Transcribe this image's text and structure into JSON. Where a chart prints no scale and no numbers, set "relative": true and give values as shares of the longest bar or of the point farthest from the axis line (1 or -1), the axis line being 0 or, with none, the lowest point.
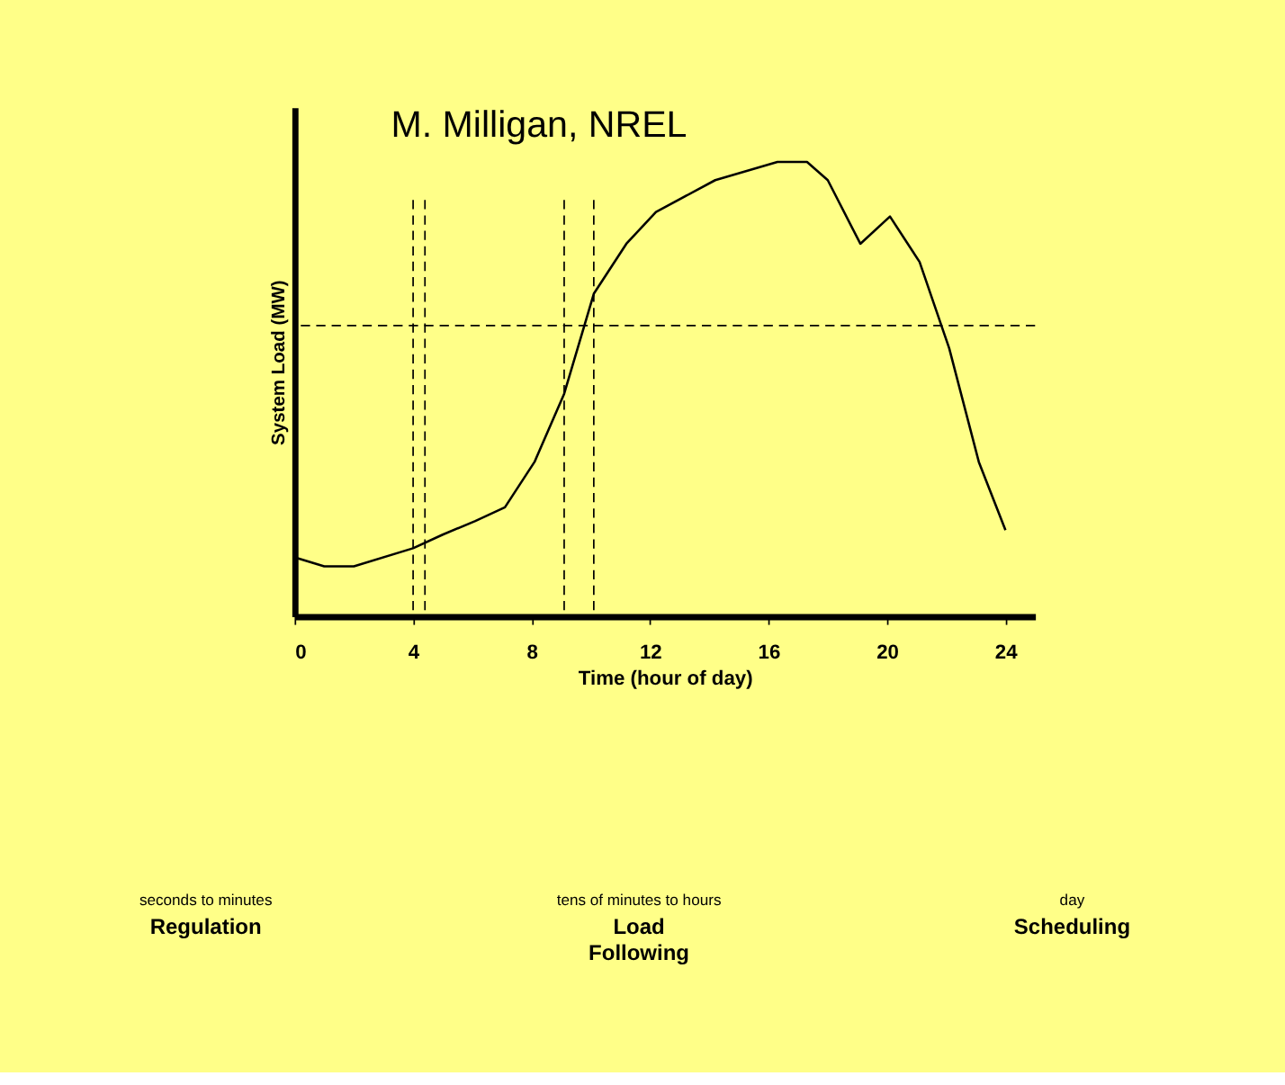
{
  "chart_data": {
    "type": "line",
    "relative": true,
    "xlabel": "Time (hour of day)",
    "ylabel": "System Load (MW)",
    "x": [
      0,
      1,
      2,
      4,
      5,
      6.1,
      7.1,
      8.1,
      9.1,
      10.1,
      11.2,
      12.2,
      14.2,
      16.3,
      17.3,
      18,
      19.1,
      20.1,
      21.1,
      22.1,
      23.1,
      24
    ],
    "series": [
      {
        "color": "#000000",
        "values": [
          0.13,
          0.11,
          0.11,
          0.15,
          0.18,
          0.21,
          0.24,
          0.34,
          0.49,
          0.71,
          0.82,
          0.89,
          0.96,
          1,
          1,
          0.96,
          0.82,
          0.88,
          0.78,
          0.59,
          0.34,
          0.19
        ]
      }
    ],
    "xlim": [
      0,
      25
    ],
    "xticks": [
      0,
      4,
      8,
      12,
      16,
      20,
      24
    ],
    "ref_lines": [
      {
        "axis": "y",
        "value": 0.64,
        "line_style": "dashed",
        "color": "#000000"
      },
      {
        "axis": "x",
        "value": 4.0,
        "line_style": "dashed",
        "color": "#000000"
      },
      {
        "axis": "x",
        "value": 4.4,
        "line_style": "dashed",
        "color": "#000000"
      },
      {
        "axis": "x",
        "value": 9.1,
        "line_style": "dashed",
        "color": "#000000"
      },
      {
        "axis": "x",
        "value": 10.1,
        "line_style": "dashed",
        "color": "#000000"
      }
    ],
    "annotations": [
      "M. Milligan, NREL",
      "Regulation",
      "Load Following",
      "Scheduling",
      "seconds to minutes",
      "tens of minutes to hours",
      "day"
    ],
    "marker": "none",
    "line_style": "solid",
    "grid": false
  }
}
